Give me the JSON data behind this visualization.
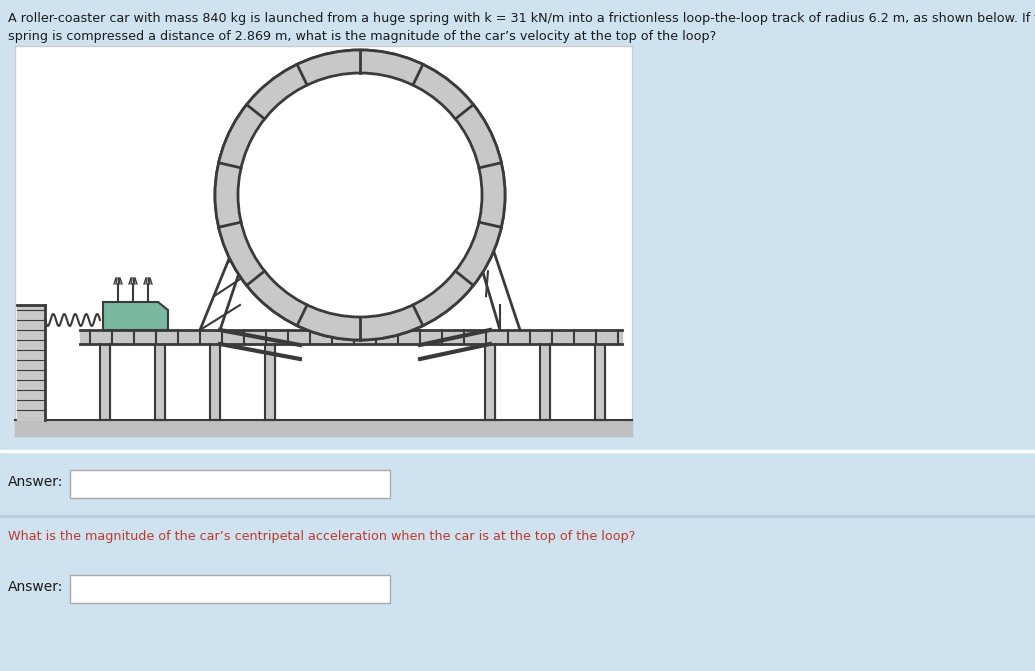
{
  "background_color": "#cfe2f0",
  "panel_bg": "#ffffff",
  "text_color": "#1a1a1a",
  "red_text_color": "#c0392b",
  "track_color": "#3a3a3a",
  "track_fill": "#c8c8c8",
  "ground_color": "#c8c8c8",
  "car_color": "#7ab8a0",
  "spring_color": "#3a3a3a",
  "answer_label": "Answer:",
  "question2": "What is the magnitude of the car’s centripetal acceleration when the car is at the top of the loop?",
  "divider_color": "#b8cfe0"
}
